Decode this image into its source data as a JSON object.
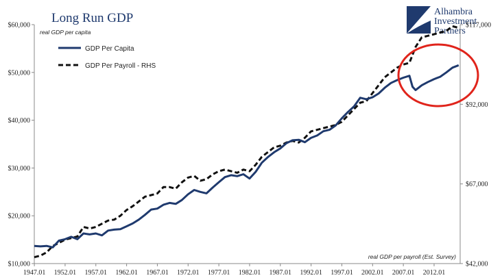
{
  "chart_data": {
    "type": "line",
    "title": "Long Run GDP",
    "left_axis_label": "real GDP per capita",
    "right_axis_label": "real GDP per payroll (Est. Survey)",
    "left_ylim": [
      10000,
      60000
    ],
    "right_ylim": [
      42000,
      117000
    ],
    "left_ticks": [
      "$10,000",
      "$20,000",
      "$30,000",
      "$40,000",
      "$50,000",
      "$60,000"
    ],
    "right_ticks": [
      "$42,000",
      "$67,000",
      "$92,000",
      "$117,000"
    ],
    "x_ticks": [
      "1947.01",
      "1952.01",
      "1957.01",
      "1962.01",
      "1967.01",
      "1972.01",
      "1977.01",
      "1982.01",
      "1987.01",
      "1992.01",
      "1997.01",
      "2002.01",
      "2007.01",
      "2012.01"
    ],
    "xlim": [
      1947.0,
      2016.25
    ],
    "series": [
      {
        "name": "GDP Per Capita",
        "axis": "left",
        "color": "#1f3a6e",
        "style": "solid",
        "x": [
          1947,
          1948,
          1949,
          1950,
          1951,
          1952,
          1953,
          1954,
          1955,
          1956,
          1957,
          1958,
          1959,
          1960,
          1961,
          1962,
          1963,
          1964,
          1965,
          1966,
          1967,
          1968,
          1969,
          1970,
          1971,
          1972,
          1973,
          1974,
          1975,
          1976,
          1977,
          1978,
          1979,
          1980,
          1981,
          1982,
          1983,
          1984,
          1985,
          1986,
          1987,
          1988,
          1989,
          1990,
          1991,
          1992,
          1993,
          1994,
          1995,
          1996,
          1997,
          1998,
          1999,
          2000,
          2001,
          2002,
          2003,
          2004,
          2005,
          2006,
          2007,
          2008,
          2008.5,
          2009,
          2010,
          2011,
          2012,
          2013,
          2014,
          2015,
          2016
        ],
        "values": [
          13700,
          13600,
          13700,
          13400,
          14800,
          15100,
          15600,
          15100,
          16300,
          16100,
          16300,
          15900,
          16900,
          17100,
          17200,
          17800,
          18400,
          19200,
          20200,
          21300,
          21500,
          22300,
          22700,
          22500,
          23300,
          24500,
          25400,
          25000,
          24700,
          25900,
          27000,
          28100,
          28500,
          28300,
          28700,
          27800,
          29200,
          31100,
          32300,
          33300,
          34100,
          35200,
          35800,
          35900,
          35400,
          36300,
          36800,
          37700,
          38000,
          38900,
          40400,
          41700,
          42900,
          44700,
          44400,
          44800,
          45600,
          46800,
          47800,
          48400,
          48900,
          49300,
          47000,
          46300,
          47300,
          48000,
          48600,
          49100,
          50000,
          51000,
          51500
        ]
      },
      {
        "name": "GDP Per Payroll - RHS",
        "axis": "right",
        "color": "#111111",
        "style": "dashed",
        "x": [
          1947,
          1948,
          1949,
          1950,
          1951,
          1952,
          1953,
          1954,
          1955,
          1956,
          1957,
          1958,
          1959,
          1960,
          1961,
          1962,
          1963,
          1964,
          1965,
          1966,
          1967,
          1968,
          1969,
          1970,
          1971,
          1972,
          1973,
          1974,
          1975,
          1976,
          1977,
          1978,
          1979,
          1980,
          1981,
          1982,
          1983,
          1984,
          1985,
          1986,
          1987,
          1988,
          1989,
          1990,
          1991,
          1992,
          1993,
          1994,
          1995,
          1996,
          1997,
          1998,
          1999,
          2000,
          2001,
          2002,
          2003,
          2004,
          2005,
          2006,
          2007,
          2008,
          2009,
          2010,
          2011,
          2012,
          2013,
          2014,
          2015,
          2016
        ],
        "values": [
          44000,
          44500,
          45500,
          47500,
          48500,
          49500,
          50000,
          50500,
          53500,
          53000,
          53500,
          54500,
          55500,
          55800,
          57000,
          58800,
          60000,
          61500,
          63000,
          63500,
          64000,
          66000,
          66000,
          65500,
          67500,
          69000,
          69500,
          68000,
          68500,
          70000,
          71000,
          71500,
          71000,
          70500,
          71500,
          71000,
          73000,
          75500,
          77000,
          78500,
          79000,
          80000,
          80500,
          80000,
          81500,
          83500,
          84000,
          84500,
          85000,
          85500,
          86500,
          88500,
          90500,
          92500,
          93000,
          95500,
          98000,
          100500,
          102000,
          103500,
          104500,
          105000,
          110000,
          113000,
          113500,
          114000,
          114500,
          115000,
          116500,
          116000
        ]
      }
    ],
    "grid": false,
    "legend_position": "top-left",
    "annotations": [
      "red circle highlighting 2008-2016 divergence"
    ]
  },
  "branding": {
    "line1": "Alhambra",
    "line2": "Investment",
    "line3": "Partners"
  },
  "colors": {
    "title": "#1f3a6e",
    "highlight": "#e0241b"
  }
}
